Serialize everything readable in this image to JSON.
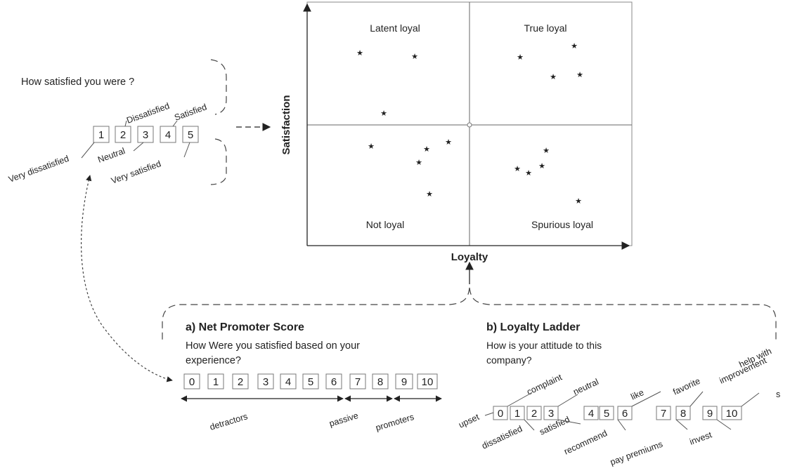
{
  "matrix": {
    "y_axis_label": "Satisfaction",
    "x_axis_label": "Loyalty",
    "quadrants": {
      "top_left": "Latent loyal",
      "top_right": "True loyal",
      "bottom_left": "Not loyal",
      "bottom_right": "Spurious loyal"
    },
    "star_glyph": "★"
  },
  "satisfaction_scale": {
    "question": "How satisfied you were ?",
    "numbers": [
      "1",
      "2",
      "3",
      "4",
      "5"
    ],
    "labels": {
      "very_dissatisfied": "Very dissatisfied",
      "dissatisfied": "Dissatisfied",
      "neutral": "Neutral",
      "satisfied": "Satisfied",
      "very_satisfied": "Very satisfied"
    }
  },
  "nps": {
    "title": "a) Net Promoter Score",
    "question_line1": "How Were you satisfied based on your",
    "question_line2": "experience?",
    "numbers": [
      "0",
      "1",
      "2",
      "3",
      "4",
      "5",
      "6",
      "7",
      "8",
      "9",
      "10"
    ],
    "segments": {
      "detractors": "detractors",
      "passive": "passive",
      "promoters": "promoters"
    }
  },
  "ladder": {
    "title": "b) Loyalty Ladder",
    "question_line1": "How is your attitude to this",
    "question_line2": "company?",
    "numbers": [
      "0",
      "1",
      "2",
      "3",
      "4",
      "5",
      "6",
      "7",
      "8",
      "9",
      "10"
    ],
    "labels": {
      "upset": "upset",
      "complaint": "complaint",
      "neutral": "neutral",
      "like": "like",
      "favorite": "favorite",
      "help_with": "help with",
      "improvement": "improvement",
      "improvement_s": "s",
      "dissatisfied": "dissatisfied",
      "satisfied": "satisfied",
      "recommend": "recommend",
      "pay_premiums": "pay premiums",
      "invest": "invest"
    }
  }
}
